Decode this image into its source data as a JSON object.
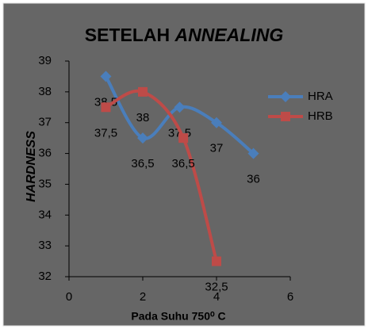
{
  "chart_data": {
    "type": "line",
    "title": [
      "SETELAH",
      "ANNEALING"
    ],
    "x_label": "Pada Suhu 750⁰ C",
    "y_label": "HARDNESS",
    "xlim": [
      0,
      6
    ],
    "xticks": [
      0,
      2,
      4,
      6
    ],
    "ylim": [
      32,
      39
    ],
    "yticks": [
      32,
      33,
      34,
      35,
      36,
      37,
      38,
      39
    ],
    "smooth": true,
    "grid": false,
    "legend": "right",
    "series": [
      {
        "name": "HRA",
        "color": "#4a7ebb",
        "marker": "diamond",
        "x": [
          1,
          2,
          3,
          4,
          5
        ],
        "values": [
          38.5,
          36.5,
          37.5,
          37,
          36
        ],
        "value_labels": [
          "38,5",
          "36,5",
          "37,5",
          "37",
          "36"
        ]
      },
      {
        "name": "HRB",
        "color": "#be4b48",
        "marker": "square",
        "x": [
          1,
          2,
          3.1,
          4
        ],
        "values": [
          37.5,
          38,
          36.5,
          32.5
        ],
        "value_labels": [
          "37,5",
          "38",
          "36,5",
          "32,5"
        ]
      }
    ]
  }
}
